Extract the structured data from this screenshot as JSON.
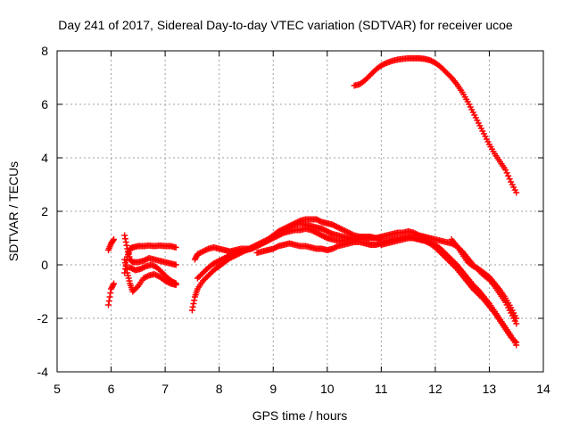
{
  "chart_data": {
    "type": "scatter",
    "title": "Day 241 of 2017, Sidereal Day-to-day VTEC variation (SDTVAR) for receiver ucoe",
    "xlabel": "GPS time / hours",
    "ylabel": "SDTVAR / TECUs",
    "xlim": [
      5,
      14
    ],
    "ylim": [
      -4,
      8
    ],
    "xticks": [
      5,
      6,
      7,
      8,
      9,
      10,
      11,
      12,
      13,
      14
    ],
    "yticks": [
      -4,
      -2,
      0,
      2,
      4,
      6,
      8
    ],
    "xtick_labels": [
      "5",
      "6",
      "7",
      "8",
      "9",
      "10",
      "11",
      "12",
      "13",
      "14"
    ],
    "ytick_labels": [
      "-4",
      "-2",
      "0",
      "2",
      "4",
      "6",
      "8"
    ],
    "grid": true,
    "marker": "plus",
    "color": "#ff0000",
    "series": [
      {
        "name": "upper",
        "x": [
          10.5,
          10.6,
          10.7,
          10.8,
          10.9,
          11.0,
          11.1,
          11.2,
          11.3,
          11.4,
          11.5,
          11.6,
          11.7,
          11.8,
          11.9,
          12.0,
          12.1,
          12.2,
          12.3,
          12.4,
          12.5,
          12.6,
          12.7,
          12.8,
          12.9,
          13.0,
          13.1,
          13.2,
          13.3,
          13.4,
          13.5
        ],
        "y": [
          6.7,
          6.75,
          6.9,
          7.1,
          7.3,
          7.45,
          7.55,
          7.62,
          7.67,
          7.7,
          7.72,
          7.72,
          7.72,
          7.7,
          7.65,
          7.55,
          7.4,
          7.2,
          7.0,
          6.75,
          6.45,
          6.1,
          5.7,
          5.3,
          4.9,
          4.5,
          4.15,
          3.85,
          3.55,
          3.1,
          2.7
        ]
      },
      {
        "name": "a1",
        "x": [
          5.95,
          6.0,
          6.05
        ],
        "y": [
          0.55,
          0.8,
          0.95
        ]
      },
      {
        "name": "a2",
        "x": [
          5.95,
          6.0,
          6.05
        ],
        "y": [
          -1.5,
          -0.9,
          -0.7
        ]
      },
      {
        "name": "b1",
        "x": [
          6.25,
          6.3,
          6.35,
          6.4,
          6.5,
          6.6,
          6.7,
          6.8,
          6.9,
          7.0,
          7.1,
          7.2
        ],
        "y": [
          -0.3,
          0.3,
          0.6,
          0.65,
          0.7,
          0.7,
          0.72,
          0.7,
          0.72,
          0.7,
          0.7,
          0.65
        ]
      },
      {
        "name": "b2",
        "x": [
          6.25,
          6.3,
          6.35,
          6.4,
          6.5,
          6.6,
          6.7,
          6.8,
          6.9,
          7.0,
          7.1,
          7.2
        ],
        "y": [
          1.1,
          0.6,
          0.2,
          0.1,
          0.1,
          0.15,
          0.25,
          0.2,
          0.15,
          0.1,
          0.05,
          0.0
        ]
      },
      {
        "name": "b3",
        "x": [
          6.25,
          6.3,
          6.35,
          6.4,
          6.5,
          6.6,
          6.7,
          6.8,
          6.9,
          7.0,
          7.1,
          7.2
        ],
        "y": [
          0.2,
          -0.3,
          -0.7,
          -1.0,
          -0.8,
          -0.5,
          -0.4,
          -0.35,
          -0.45,
          -0.6,
          -0.7,
          -0.75
        ]
      },
      {
        "name": "b4",
        "x": [
          6.35,
          6.45,
          6.55,
          6.65,
          6.75,
          6.85,
          6.95,
          7.05,
          7.15,
          7.2
        ],
        "y": [
          -0.1,
          -0.2,
          -0.15,
          -0.05,
          0.0,
          -0.1,
          -0.3,
          -0.5,
          -0.65,
          -0.7
        ]
      },
      {
        "name": "c1",
        "x": [
          7.55,
          7.6,
          7.7,
          7.8,
          7.9,
          8.0,
          8.1,
          8.2,
          8.3,
          8.4,
          8.5,
          8.6,
          8.7,
          8.8,
          8.9,
          9.0,
          9.1,
          9.2,
          9.3,
          9.4,
          9.5,
          9.6,
          9.7,
          9.8,
          9.9,
          10.0,
          10.1,
          10.2,
          10.3,
          10.4,
          10.5,
          10.6,
          10.7,
          10.8,
          10.9,
          11.0
        ],
        "y": [
          0.2,
          0.4,
          0.5,
          0.6,
          0.65,
          0.6,
          0.55,
          0.5,
          0.55,
          0.6,
          0.6,
          0.6,
          0.7,
          0.8,
          0.9,
          1.1,
          1.25,
          1.35,
          1.45,
          1.55,
          1.65,
          1.7,
          1.7,
          1.7,
          1.6,
          1.55,
          1.5,
          1.4,
          1.3,
          1.2,
          1.1,
          1.05,
          1.0,
          1.0,
          1.0,
          1.05
        ]
      },
      {
        "name": "c2",
        "x": [
          7.5,
          7.55,
          7.6,
          7.7,
          7.8,
          7.9,
          8.0,
          8.1,
          8.2,
          8.3,
          8.4,
          8.5,
          8.6,
          8.7,
          8.8,
          8.9,
          9.0,
          9.1,
          9.2,
          9.3,
          9.4,
          9.5,
          9.6,
          9.7,
          9.8,
          9.9,
          10.0,
          10.1,
          10.2,
          10.3,
          10.4,
          10.5,
          10.6
        ],
        "y": [
          -1.7,
          -1.2,
          -0.9,
          -0.6,
          -0.4,
          -0.2,
          -0.05,
          0.1,
          0.25,
          0.35,
          0.45,
          0.55,
          0.65,
          0.75,
          0.85,
          0.95,
          1.1,
          1.2,
          1.3,
          1.4,
          1.5,
          1.55,
          1.5,
          1.45,
          1.4,
          1.35,
          1.25,
          1.15,
          1.1,
          1.05,
          1.0,
          1.0,
          1.0
        ]
      },
      {
        "name": "c3",
        "x": [
          7.6,
          7.7,
          7.8,
          7.9,
          8.0,
          8.1,
          8.2,
          8.3,
          8.4,
          8.5,
          8.6,
          8.7,
          8.8,
          8.9,
          9.0,
          9.1,
          9.2,
          9.3,
          9.4,
          9.5,
          9.6,
          9.7,
          9.8,
          9.9,
          10.0,
          10.1,
          10.2,
          10.3,
          10.4,
          10.5,
          10.6,
          10.7,
          10.8,
          10.9,
          11.0
        ],
        "y": [
          -0.5,
          -0.3,
          -0.1,
          0.05,
          0.15,
          0.25,
          0.35,
          0.45,
          0.5,
          0.55,
          0.6,
          0.7,
          0.8,
          0.9,
          1.0,
          1.1,
          1.2,
          1.25,
          1.3,
          1.3,
          1.35,
          1.3,
          1.2,
          1.1,
          1.0,
          0.95,
          0.9,
          0.9,
          0.95,
          1.0,
          1.05,
          1.05,
          1.05,
          1.0,
          1.0
        ]
      },
      {
        "name": "c4",
        "x": [
          8.7,
          8.8,
          8.9,
          9.0,
          9.1,
          9.2,
          9.3,
          9.4,
          9.5,
          9.6,
          9.7,
          9.8,
          9.9,
          10.0,
          10.1,
          10.2,
          10.3,
          10.4,
          10.5,
          10.6,
          10.7,
          10.8,
          10.9,
          11.0
        ],
        "y": [
          0.45,
          0.5,
          0.55,
          0.6,
          0.7,
          0.75,
          0.8,
          0.75,
          0.7,
          0.7,
          0.65,
          0.6,
          0.6,
          0.55,
          0.6,
          0.7,
          0.75,
          0.8,
          0.85,
          0.85,
          0.8,
          0.75,
          0.75,
          0.8
        ]
      },
      {
        "name": "d1",
        "x": [
          11.0,
          11.1,
          11.2,
          11.3,
          11.4,
          11.5,
          11.6,
          11.7,
          11.8,
          11.9,
          12.0,
          12.1,
          12.2,
          12.3,
          12.4,
          12.5,
          12.6,
          12.7,
          12.8,
          12.9,
          13.0,
          13.1,
          13.2,
          13.3,
          13.4,
          13.5
        ],
        "y": [
          1.05,
          1.1,
          1.15,
          1.2,
          1.2,
          1.25,
          1.2,
          1.1,
          1.05,
          1.0,
          0.95,
          0.9,
          0.85,
          0.8,
          0.7,
          0.5,
          0.25,
          0.0,
          -0.2,
          -0.4,
          -0.55,
          -0.8,
          -1.1,
          -1.4,
          -1.8,
          -2.2
        ]
      },
      {
        "name": "d2",
        "x": [
          11.0,
          11.1,
          11.2,
          11.3,
          11.4,
          11.5,
          11.6,
          11.7,
          11.8,
          11.9,
          12.0,
          12.1,
          12.2,
          12.3,
          12.4,
          12.5,
          12.6,
          12.7,
          12.8,
          12.9,
          13.0,
          13.1,
          13.2,
          13.3,
          13.4,
          13.5
        ],
        "y": [
          0.85,
          0.9,
          0.95,
          1.0,
          1.0,
          1.05,
          1.0,
          0.95,
          0.9,
          0.85,
          0.75,
          0.6,
          0.4,
          0.2,
          0.0,
          -0.25,
          -0.5,
          -0.75,
          -0.95,
          -1.2,
          -1.45,
          -1.75,
          -2.05,
          -2.35,
          -2.65,
          -3.0
        ]
      },
      {
        "name": "d3",
        "x": [
          11.0,
          11.1,
          11.2,
          11.3,
          11.4,
          11.5,
          11.6,
          11.7,
          11.8,
          11.9,
          12.0,
          12.1,
          12.2,
          12.3,
          12.4,
          12.5,
          12.6,
          12.7,
          12.8,
          12.9,
          13.0,
          13.1,
          13.2,
          13.3,
          13.4,
          13.5
        ],
        "y": [
          0.75,
          0.8,
          0.85,
          0.9,
          0.95,
          1.0,
          1.0,
          0.95,
          0.9,
          0.8,
          0.65,
          0.45,
          0.25,
          0.05,
          -0.15,
          -0.4,
          -0.65,
          -0.9,
          -1.1,
          -1.3,
          -1.55,
          -1.8,
          -2.1,
          -2.4,
          -2.7,
          -2.9
        ]
      },
      {
        "name": "d4",
        "x": [
          12.3,
          12.4,
          12.5,
          12.6,
          12.7,
          12.8,
          12.9,
          13.0,
          13.1,
          13.2,
          13.3,
          13.4,
          13.5
        ],
        "y": [
          0.95,
          0.7,
          0.4,
          0.1,
          -0.05,
          -0.15,
          -0.3,
          -0.45,
          -0.7,
          -0.95,
          -1.25,
          -1.6,
          -2.0
        ]
      }
    ]
  }
}
